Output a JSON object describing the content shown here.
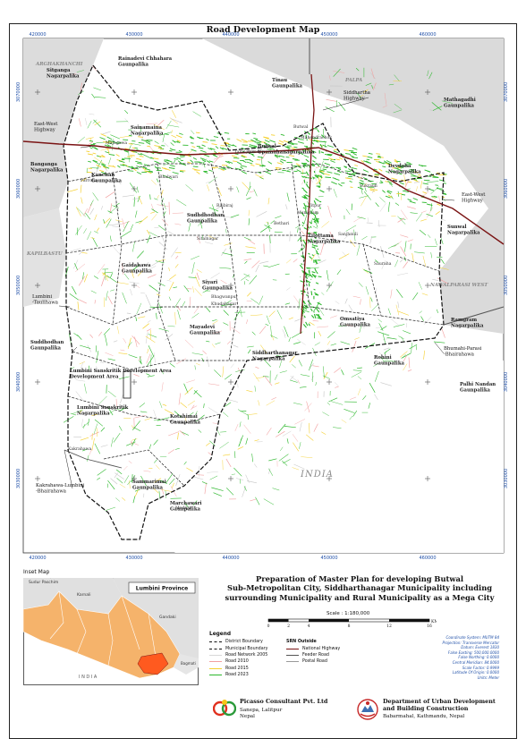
{
  "map": {
    "title": "Road Development Map",
    "easting_ticks": [
      "420000",
      "430000",
      "440000",
      "450000",
      "460000"
    ],
    "northing_ticks": [
      "3070000",
      "3060000",
      "3050000",
      "3040000",
      "3030000"
    ],
    "neighbors": {
      "arghakhanchi": "ARGHAKHANCHI",
      "palpa": "PALPA",
      "kapilbastu": "KAPILBASTU",
      "nawalparasi": "NAWALPARASI WEST",
      "india": "INDIA"
    },
    "places": [
      {
        "id": "rainadevi",
        "lines": [
          "Rainadevi Chhahara",
          "Gaunpalika"
        ]
      },
      {
        "id": "sitganga",
        "lines": [
          "Sitganga",
          "Nagarpalika"
        ]
      },
      {
        "id": "tinau",
        "lines": [
          "Tinau",
          "Gaunpalika"
        ]
      },
      {
        "id": "siddhartha-hwy",
        "lines": [
          "Siddhartha",
          "Highway"
        ]
      },
      {
        "id": "mathagadhi",
        "lines": [
          "Mathagadhi",
          "Gaunpalika"
        ]
      },
      {
        "id": "ew-hwy-left",
        "lines": [
          "East-West",
          "Highway"
        ]
      },
      {
        "id": "sainamaina",
        "lines": [
          "Sainamaina",
          "Nagarpalika"
        ]
      },
      {
        "id": "butwal",
        "lines": [
          "Butwal",
          "Upamahanagarpalika"
        ]
      },
      {
        "id": "banganga",
        "lines": [
          "Banganga",
          "Nagarpalika"
        ]
      },
      {
        "id": "devdaha",
        "lines": [
          "Devdaha",
          "Nagarpalika"
        ]
      },
      {
        "id": "ew-hwy-right",
        "lines": [
          "East-West",
          "Highway"
        ]
      },
      {
        "id": "kanchan",
        "lines": [
          "Kanchan",
          "Gaunpalika"
        ]
      },
      {
        "id": "sudhdhodhan-g",
        "lines": [
          "Sudhdhodhan",
          "Gaunpalika"
        ]
      },
      {
        "id": "tilottama",
        "lines": [
          "Tilottama",
          "Nagarpalika"
        ]
      },
      {
        "id": "sainamaina-2",
        "lines": [
          "Sunwal",
          "Nagarpalika"
        ]
      },
      {
        "id": "gaidahawa",
        "lines": [
          "Gaidahawa",
          "Gaunpalika"
        ]
      },
      {
        "id": "siyari",
        "lines": [
          "Siyari",
          "Gaunpalika"
        ]
      },
      {
        "id": "lumbini-taulihawa",
        "lines": [
          "Lumbini",
          "-Taulihawa"
        ]
      },
      {
        "id": "suddhodhan-g2",
        "lines": [
          "Suddhodhan",
          "Gaunpalika"
        ]
      },
      {
        "id": "omsatiya",
        "lines": [
          "Omsatiya",
          "Gaunpalika"
        ]
      },
      {
        "id": "ramgram",
        "lines": [
          "Ramgram",
          "Nagarpalika"
        ]
      },
      {
        "id": "mayadevi",
        "lines": [
          "Mayadevi",
          "Gaunpalika"
        ]
      },
      {
        "id": "siddharthanagar",
        "lines": [
          "Siddharthanagar",
          "Nagarpalika"
        ]
      },
      {
        "id": "bhumahi",
        "lines": [
          "Bhumahi-Parasi",
          "-Bhairahawa"
        ]
      },
      {
        "id": "lumbini-sdad",
        "lines": [
          "Lumbini Sanskritik Development Area",
          "Development Area"
        ]
      },
      {
        "id": "rohini",
        "lines": [
          "Rohini",
          "Gaunpalika"
        ]
      },
      {
        "id": "palhi",
        "lines": [
          "Palhi Nandan",
          "Gaunpalika"
        ]
      },
      {
        "id": "lumbini-sanskritik",
        "lines": [
          "Lumbini Sanskritik",
          "Nagarpalika"
        ]
      },
      {
        "id": "kotahimai",
        "lines": [
          "Kotahimai",
          "Gaunpalika"
        ]
      },
      {
        "id": "kakrahawa",
        "lines": [
          "Kakrahawa-Lumbini",
          "-Bhairahawa"
        ]
      },
      {
        "id": "sammarimai",
        "lines": [
          "Sammarimai",
          "Gaunpalika"
        ]
      },
      {
        "id": "marchawari",
        "lines": [
          "Marchawari",
          "Gaunpalika"
        ]
      }
    ],
    "towns": [
      "Butwal",
      "Mahendrachok",
      "Manigram",
      "Sukrauli",
      "Bhalwari",
      "Kakrahawa",
      "Parroha",
      "Tansen",
      "Jitpur",
      "Rajbiraj",
      "Bhagwanpur",
      "Khudabagar",
      "Mudiya",
      "Sitalnagar",
      "Majhgawa",
      "Bethari",
      "Tamnagar",
      "Sauraha",
      "Sanjhauli"
    ]
  },
  "inset": {
    "title": "Inset Map",
    "province_label": "Lumbini Province",
    "regions": [
      "Sudur Paschim",
      "Karnali",
      "Gandaki",
      "Bagmati"
    ],
    "india": "I N D I A"
  },
  "plan_title": [
    "Preparation of Master Plan for developing Butwal",
    "Sub-Metropolitan City, Siddharthanagar Municipality including",
    "surrounding Municipality and Rural Municipality as a Mega City"
  ],
  "scale": {
    "text": "Scale : 1:180,000",
    "marks": [
      "0",
      "2",
      "4",
      "8",
      "12",
      "16"
    ],
    "unit": "KM"
  },
  "legend": {
    "heading": "Legend",
    "left": [
      {
        "label": "District Boundary",
        "style": "dash-thick"
      },
      {
        "label": "Municipal Boundary",
        "style": "dash"
      },
      {
        "label": "Road Network 2005",
        "style": "line",
        "color": "#e8e8e8"
      },
      {
        "label": "Road 2010",
        "style": "line",
        "color": "#f2a0a0"
      },
      {
        "label": "Road 2015",
        "style": "line",
        "color": "#f5d030"
      },
      {
        "label": "Road 2023",
        "style": "line",
        "color": "#2db82d"
      }
    ],
    "right_heading": "SRN Outside",
    "right": [
      {
        "label": "National Highway",
        "color": "#7a1414"
      },
      {
        "label": "Feeder Road",
        "color": "#555555"
      },
      {
        "label": "Postal Road",
        "color": "#9a9a9a"
      }
    ]
  },
  "projection": [
    "Coordinate System: MUTM 84",
    "Projection: Transverse Mercator",
    "Datum: Everest 1830",
    "False Easting: 500,000.0000",
    "False Northing: 0.0000",
    "Central Meridian: 84.0000",
    "Scale Factor: 0.9999",
    "Latitude Of Origin: 0.0000",
    "Units: Meter"
  ],
  "orgs": {
    "consultant": {
      "name": "Picasso Consultant Pvt. Ltd",
      "addr1": "Sanepa, Lalitpur",
      "addr2": "Nepal"
    },
    "client": {
      "name1": "Department of Urban Development",
      "name2": "and Building Construction",
      "addr": "Babarmahal, Kathmandu, Nepal"
    }
  },
  "colors": {
    "road_2023": "#2db82d",
    "road_2015": "#f5d030",
    "road_2010": "#f2a0a0",
    "national_highway": "#7a1414",
    "feeder": "#555555",
    "neighbor_fill": "#d6d6d6",
    "inset_province": "#f5b36b",
    "inset_focus": "#ff5a1f"
  }
}
